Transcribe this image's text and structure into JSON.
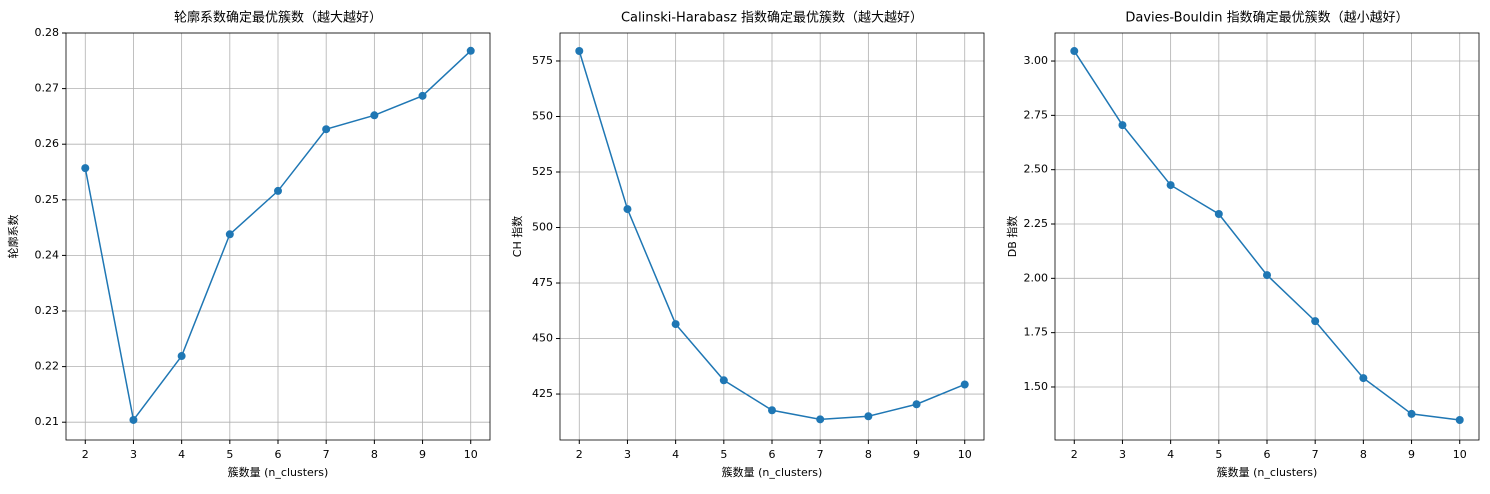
{
  "chart_data": [
    {
      "type": "line",
      "title": "轮廓系数确定最优簇数（越大越好）",
      "x_label": "簇数量 (n_clusters)",
      "y_label": "轮廓系数",
      "x": [
        2,
        3,
        4,
        5,
        6,
        7,
        8,
        9,
        10
      ],
      "series": [
        {
          "name": "轮廓系数",
          "color": "#1f77b4",
          "values": [
            0.2557,
            0.2104,
            0.2219,
            0.2438,
            0.2516,
            0.2627,
            0.2652,
            0.2687,
            0.2768
          ]
        }
      ],
      "xlim": [
        1.6,
        10.4
      ],
      "xticks": [
        2,
        3,
        4,
        5,
        6,
        7,
        8,
        9,
        10
      ],
      "ylim": [
        0.2068,
        0.28
      ],
      "yticks": [
        0.21,
        0.22,
        0.23,
        0.24,
        0.25,
        0.26,
        0.27,
        0.28
      ],
      "grid": true
    },
    {
      "type": "line",
      "title": "Calinski-Harabasz 指数确定最优簇数（越大越好）",
      "x_label": "簇数量 (n_clusters)",
      "y_label": "CH 指数",
      "x": [
        2,
        3,
        4,
        5,
        6,
        7,
        8,
        9,
        10
      ],
      "series": [
        {
          "name": "CH 指数",
          "color": "#1f77b4",
          "values": [
            579.5,
            508.3,
            456.5,
            431.2,
            417.7,
            413.6,
            415.0,
            420.4,
            429.3
          ]
        }
      ],
      "xlim": [
        1.6,
        10.4
      ],
      "xticks": [
        2,
        3,
        4,
        5,
        6,
        7,
        8,
        9,
        10
      ],
      "ylim": [
        404.3,
        587.6
      ],
      "yticks": [
        425,
        450,
        475,
        500,
        525,
        550,
        575
      ],
      "grid": true
    },
    {
      "type": "line",
      "title": "Davies-Bouldin 指数确定最优簇数（越小越好）",
      "x_label": "簇数量 (n_clusters)",
      "y_label": "DB 指数",
      "x": [
        2,
        3,
        4,
        5,
        6,
        7,
        8,
        9,
        10
      ],
      "series": [
        {
          "name": "DB 指数",
          "color": "#1f77b4",
          "values": [
            3.046,
            2.705,
            2.429,
            2.296,
            2.015,
            1.803,
            1.541,
            1.376,
            1.348
          ]
        }
      ],
      "xlim": [
        1.6,
        10.4
      ],
      "xticks": [
        2,
        3,
        4,
        5,
        6,
        7,
        8,
        9,
        10
      ],
      "ylim": [
        1.256,
        3.129
      ],
      "yticks": [
        {
          "value": 1.5,
          "label": "1.50"
        },
        1.75,
        {
          "value": 2,
          "label": "2.00"
        },
        2.25,
        {
          "value": 2.5,
          "label": "2.50"
        },
        2.75,
        {
          "value": 3,
          "label": "3.00"
        }
      ],
      "grid": true
    }
  ]
}
